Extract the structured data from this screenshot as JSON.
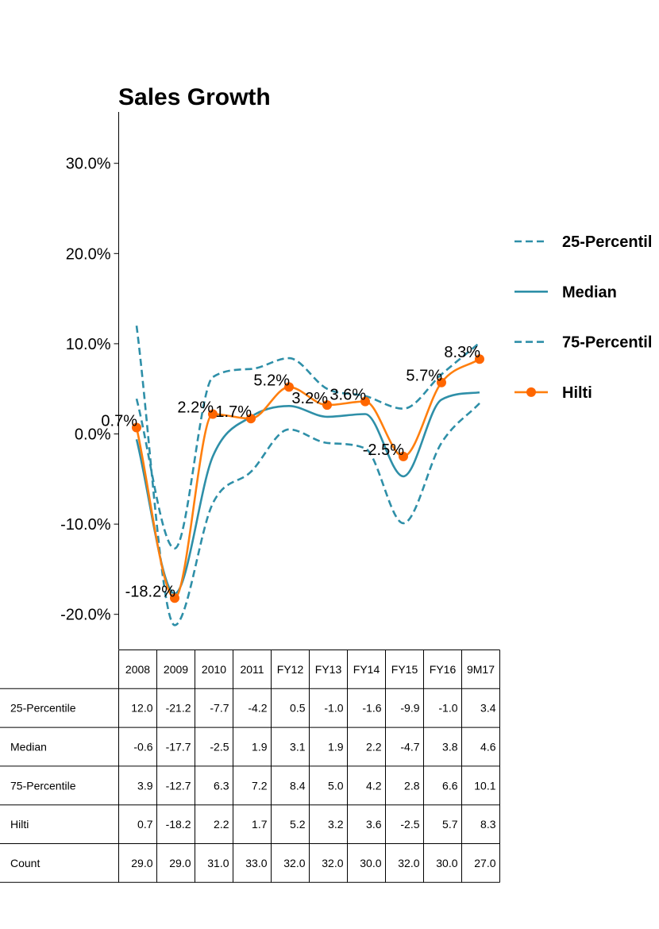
{
  "chart_data": {
    "type": "line",
    "title": "Sales Growth",
    "categories": [
      "2008",
      "2009",
      "2010",
      "2011",
      "FY12",
      "FY13",
      "FY14",
      "FY15",
      "FY16",
      "9M17"
    ],
    "y_unit": "percent",
    "ylim": [
      -24,
      36
    ],
    "yticks": [
      30,
      20,
      10,
      0,
      -10,
      -20
    ],
    "ytick_labels": [
      "30.0%",
      "20.0%",
      "10.0%",
      "0.0%",
      "-10.0%",
      "-20.0%"
    ],
    "grid": false,
    "legend_position": "right",
    "series": [
      {
        "name": "25-Percentile",
        "legend_label": "25-Percentil",
        "values": [
          12.0,
          -21.2,
          -7.7,
          -4.2,
          0.5,
          -1.0,
          -1.6,
          -9.9,
          -1.0,
          3.4
        ],
        "color": "#2e8fa8",
        "style": "dashed"
      },
      {
        "name": "Median",
        "legend_label": "Median",
        "values": [
          -0.6,
          -17.7,
          -2.5,
          1.9,
          3.1,
          1.9,
          2.2,
          -4.7,
          3.8,
          4.6
        ],
        "color": "#2e8fa8",
        "style": "solid"
      },
      {
        "name": "75-Percentile",
        "legend_label": "75-Percentil",
        "values": [
          3.9,
          -12.7,
          6.3,
          7.2,
          8.4,
          5.0,
          4.2,
          2.8,
          6.6,
          10.1
        ],
        "color": "#2e8fa8",
        "style": "dashed"
      },
      {
        "name": "Hilti",
        "legend_label": "Hilti",
        "values": [
          0.7,
          -18.2,
          2.2,
          1.7,
          5.2,
          3.2,
          3.6,
          -2.5,
          5.7,
          8.3
        ],
        "color": "#ff7f0e",
        "style": "solid",
        "markers": true,
        "marker_color": "#ff6600",
        "labels": [
          "0.7%",
          "-18.2%",
          "2.2%",
          "1.7%",
          "5.2%",
          "3.2%",
          "3.6%",
          "-2.5%",
          "5.7%",
          "8.3%"
        ]
      }
    ],
    "table": {
      "columns": [
        "2008",
        "2009",
        "2010",
        "2011",
        "FY12",
        "FY13",
        "FY14",
        "FY15",
        "FY16",
        "9M17"
      ],
      "rows": [
        {
          "label": "25-Percentile",
          "cells": [
            "12.0",
            "-21.2",
            "-7.7",
            "-4.2",
            "0.5",
            "-1.0",
            "-1.6",
            "-9.9",
            "-1.0",
            "3.4"
          ]
        },
        {
          "label": "Median",
          "cells": [
            "-0.6",
            "-17.7",
            "-2.5",
            "1.9",
            "3.1",
            "1.9",
            "2.2",
            "-4.7",
            "3.8",
            "4.6"
          ]
        },
        {
          "label": "75-Percentile",
          "cells": [
            "3.9",
            "-12.7",
            "6.3",
            "7.2",
            "8.4",
            "5.0",
            "4.2",
            "2.8",
            "6.6",
            "10.1"
          ]
        },
        {
          "label": "Hilti",
          "cells": [
            "0.7",
            "-18.2",
            "2.2",
            "1.7",
            "5.2",
            "3.2",
            "3.6",
            "-2.5",
            "5.7",
            "8.3"
          ]
        },
        {
          "label": "Count",
          "cells": [
            "29.0",
            "29.0",
            "31.0",
            "33.0",
            "32.0",
            "32.0",
            "30.0",
            "32.0",
            "30.0",
            "27.0"
          ]
        }
      ]
    }
  }
}
